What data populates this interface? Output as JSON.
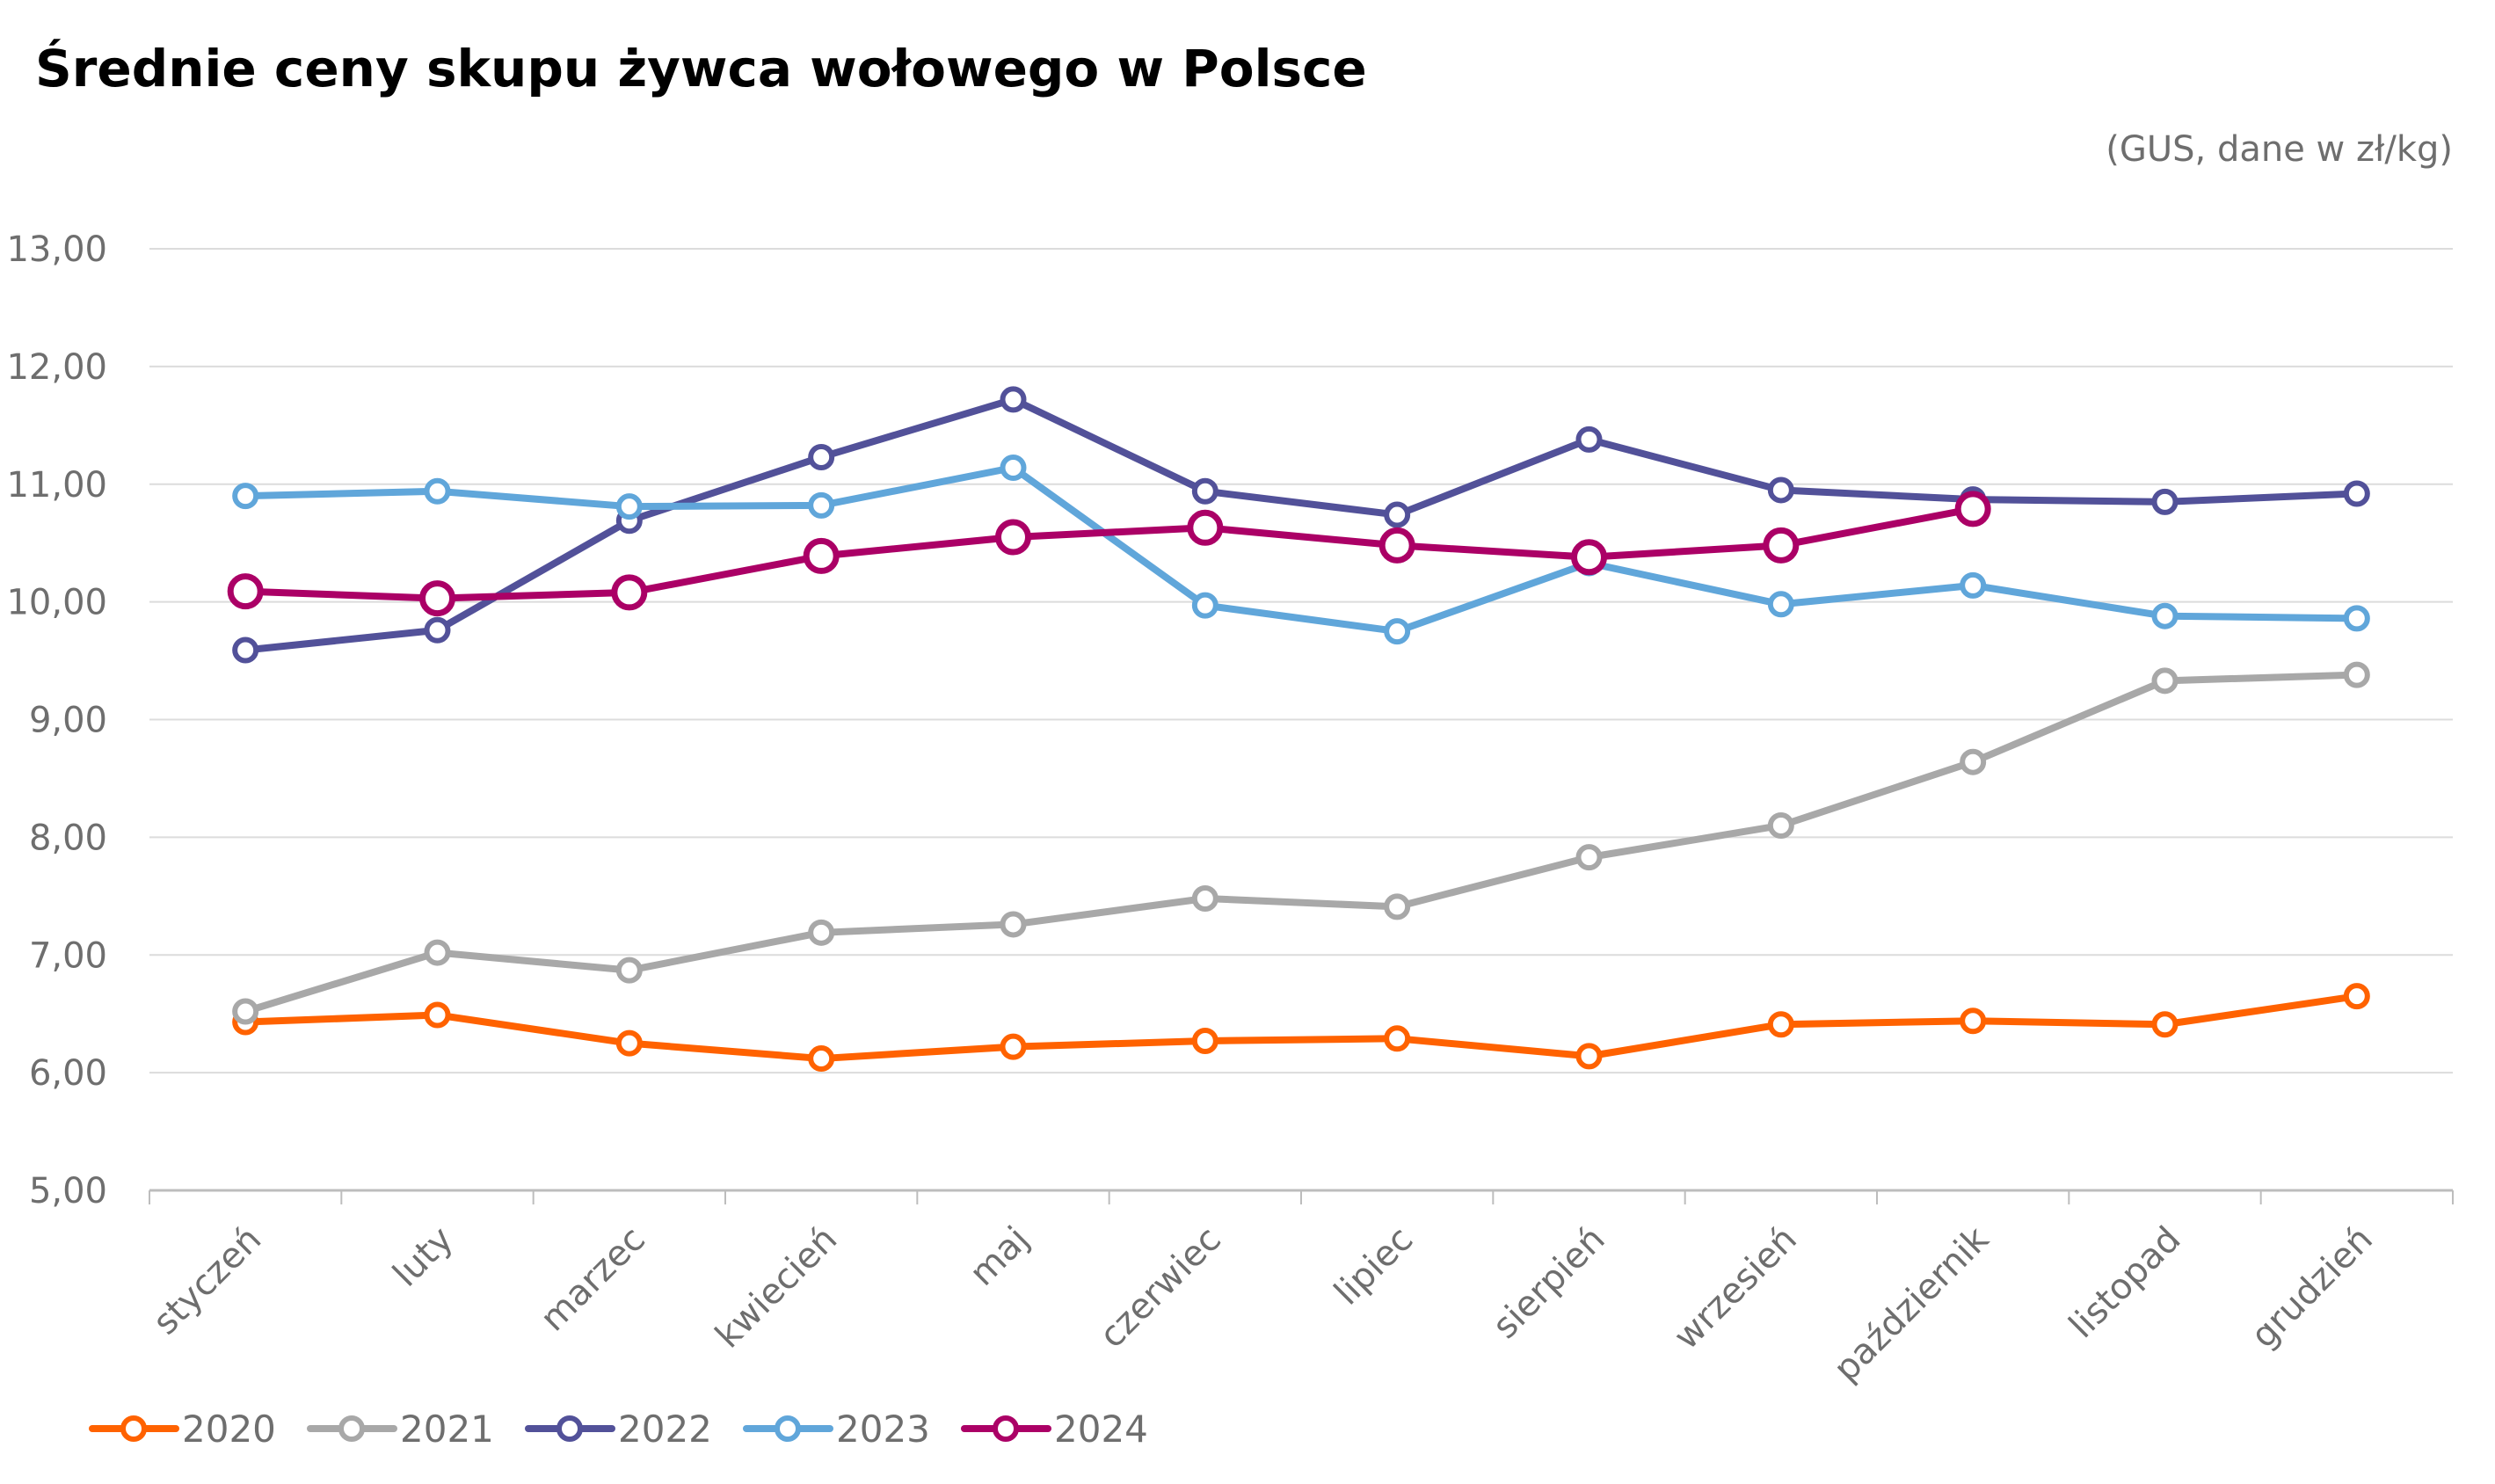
{
  "chart_data": {
    "type": "line",
    "title": "Średnie ceny skupu żywca wołowego w Polsce",
    "subtitle": "(GUS, dane w zł/kg)",
    "xlabel": "",
    "ylabel": "",
    "ylim": [
      5,
      13
    ],
    "yticks": [
      "5,00",
      "6,00",
      "7,00",
      "8,00",
      "9,00",
      "10,00",
      "11,00",
      "12,00",
      "13,00"
    ],
    "ytick_values": [
      5,
      6,
      7,
      8,
      9,
      10,
      11,
      12,
      13
    ],
    "grid": true,
    "legend_position": "bottom-left",
    "categories": [
      "styczeń",
      "luty",
      "marzec",
      "kwiecień",
      "maj",
      "czerwiec",
      "lipiec",
      "sierpień",
      "wrzesień",
      "październik",
      "listopad",
      "grudzień"
    ],
    "series": [
      {
        "name": "2020",
        "color": "#ff6200",
        "values": [
          6.43,
          6.49,
          6.25,
          6.12,
          6.22,
          6.27,
          6.29,
          6.14,
          6.41,
          6.44,
          6.41,
          6.65
        ]
      },
      {
        "name": "2021",
        "color": "#a8a8a8",
        "values": [
          6.52,
          7.02,
          6.87,
          7.19,
          7.26,
          7.48,
          7.41,
          7.83,
          8.1,
          8.64,
          9.33,
          9.38
        ]
      },
      {
        "name": "2022",
        "color": "#525199",
        "values": [
          9.59,
          9.76,
          10.69,
          11.23,
          11.72,
          10.94,
          10.74,
          11.38,
          10.95,
          10.87,
          10.85,
          10.92
        ]
      },
      {
        "name": "2023",
        "color": "#60a6da",
        "values": [
          10.9,
          10.94,
          10.81,
          10.82,
          11.14,
          9.97,
          9.75,
          10.33,
          9.98,
          10.14,
          9.88,
          9.86
        ]
      },
      {
        "name": "2024",
        "color": "#ab0066",
        "values": [
          10.09,
          10.03,
          10.08,
          10.39,
          10.55,
          10.63,
          10.48,
          10.38,
          10.48,
          10.79,
          null,
          null
        ]
      }
    ]
  }
}
